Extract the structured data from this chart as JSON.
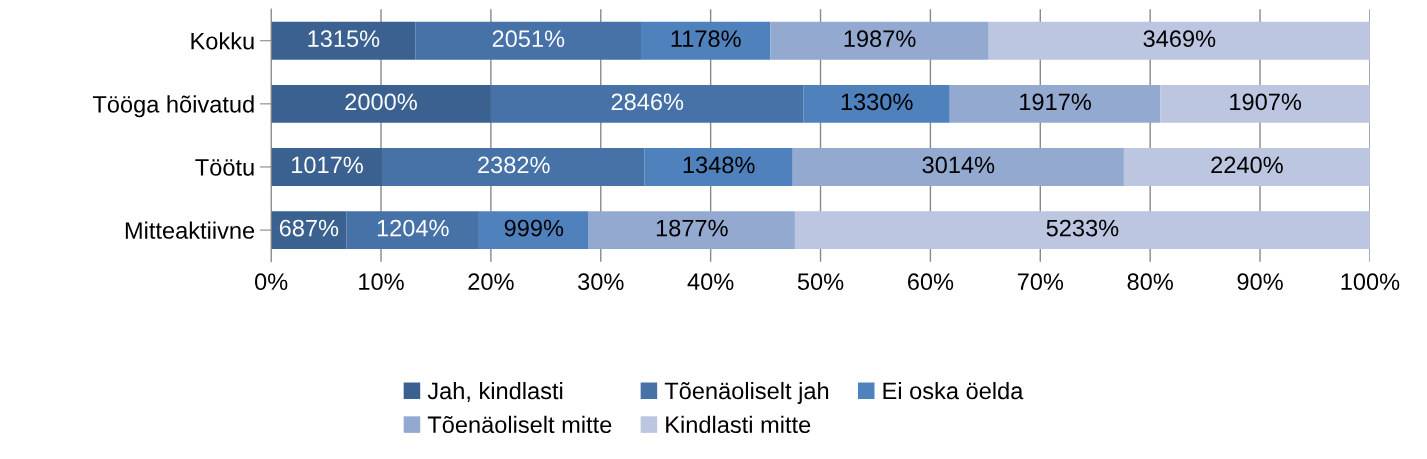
{
  "chart_data": {
    "type": "bar",
    "orientation": "horizontal",
    "stacked": true,
    "categories": [
      "Kokku",
      "Tööga hõivatud",
      "Töötu",
      "Mitteaktiivne"
    ],
    "series": [
      {
        "name": "Jah, kindlasti",
        "color": "#3b6190",
        "values": [
          13.15,
          20.0,
          10.17,
          6.87
        ],
        "value_labels": [
          "1315%",
          "2000%",
          "1017%",
          "687%"
        ]
      },
      {
        "name": "Tõenäoliselt jah",
        "color": "#4672a8",
        "values": [
          20.51,
          28.46,
          23.82,
          12.04
        ],
        "value_labels": [
          "2051%",
          "2846%",
          "2382%",
          "1204%"
        ]
      },
      {
        "name": "Ei oska öelda",
        "color": "#4f81bd",
        "values": [
          11.78,
          13.3,
          13.48,
          9.99
        ],
        "value_labels": [
          "1178%",
          "1330%",
          "1348%",
          "999%"
        ]
      },
      {
        "name": "Tõenäoliselt mitte",
        "color": "#93a9d0",
        "values": [
          19.87,
          19.17,
          30.14,
          18.77
        ],
        "value_labels": [
          "1987%",
          "1917%",
          "3014%",
          "1877%"
        ]
      },
      {
        "name": "Kindlasti mitte",
        "color": "#bcc6e1",
        "values": [
          34.69,
          19.07,
          22.4,
          52.33
        ],
        "value_labels": [
          "3469%",
          "1907%",
          "2240%",
          "5233%"
        ]
      }
    ],
    "xlim": [
      0,
      100
    ],
    "xticks": [
      {
        "value": 0,
        "label": "0%"
      },
      {
        "value": 10,
        "label": "10%"
      },
      {
        "value": 20,
        "label": "20%"
      },
      {
        "value": 30,
        "label": "30%"
      },
      {
        "value": 40,
        "label": "40%"
      },
      {
        "value": 50,
        "label": "50%"
      },
      {
        "value": 60,
        "label": "60%"
      },
      {
        "value": 70,
        "label": "70%"
      },
      {
        "value": 80,
        "label": "80%"
      },
      {
        "value": 90,
        "label": "90%"
      },
      {
        "value": 100,
        "label": "100%"
      }
    ],
    "grid": "x",
    "legend": "bottom"
  }
}
